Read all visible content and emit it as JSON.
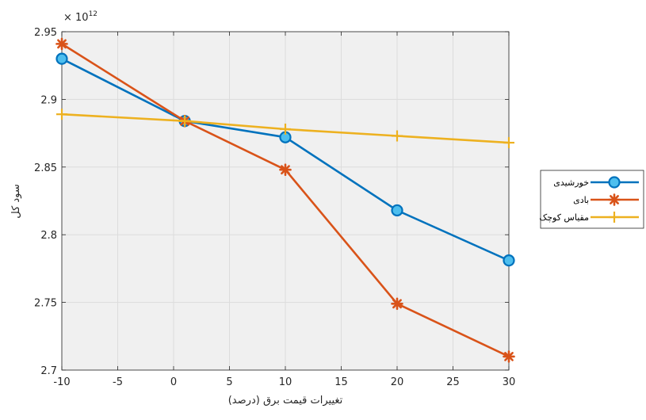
{
  "chart_data": {
    "type": "line",
    "xlabel": "تغییرات قیمت برق (درصد)",
    "ylabel": "سود کل",
    "y_multiplier": "× 10",
    "y_multiplier_exponent": "12",
    "xlim": [
      -10,
      30
    ],
    "ylim": [
      2.7,
      2.95
    ],
    "xticks": [
      -10,
      -5,
      0,
      5,
      10,
      15,
      20,
      25,
      30
    ],
    "xtick_labels": [
      "-10",
      "-5",
      "0",
      "5",
      "10",
      "15",
      "20",
      "25",
      "30"
    ],
    "yticks": [
      2.7,
      2.75,
      2.8,
      2.85,
      2.9,
      2.95
    ],
    "ytick_labels": [
      "2.7",
      "2.75",
      "2.8",
      "2.85",
      "2.9",
      "2.95"
    ],
    "grid": true,
    "legend_position": "outside-right",
    "series": [
      {
        "name": "خورشیدی",
        "color": "#0072BD",
        "marker": "circle",
        "marker_fill": "#4DBEEE",
        "x": [
          -10,
          1,
          10,
          20,
          30
        ],
        "y": [
          2.93,
          2.884,
          2.872,
          2.818,
          2.781
        ]
      },
      {
        "name": "بادی",
        "color": "#D95319",
        "marker": "star",
        "x": [
          -10,
          1,
          10,
          20,
          30
        ],
        "y": [
          2.941,
          2.884,
          2.848,
          2.749,
          2.71
        ]
      },
      {
        "name": "مقیاس کوچک",
        "color": "#EDB120",
        "marker": "plus",
        "x": [
          -10,
          1,
          10,
          20,
          30
        ],
        "y": [
          2.889,
          2.884,
          2.878,
          2.873,
          2.868
        ]
      }
    ]
  }
}
